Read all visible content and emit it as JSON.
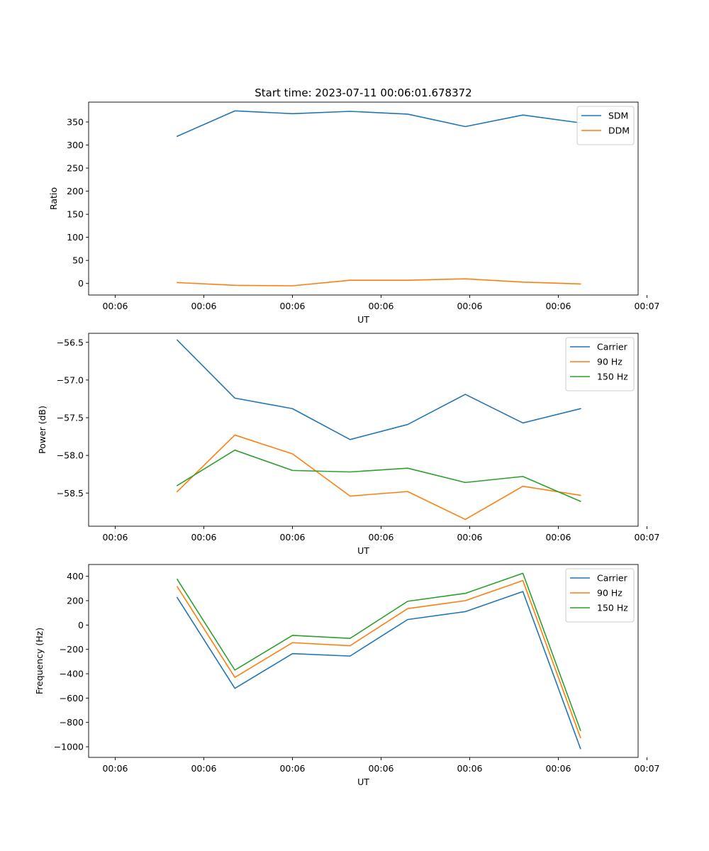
{
  "colors": {
    "blue": "#1f77b4",
    "orange": "#ff7f0e",
    "green": "#2ca02c"
  },
  "chart_data": [
    {
      "type": "line",
      "title": "Start time: 2023-07-11 00:06:01.678372",
      "xlabel": "UT",
      "ylabel": "Ratio",
      "x": [
        0.7,
        1.35,
        2.0,
        2.65,
        3.3,
        3.95,
        4.6,
        5.25
      ],
      "xlim": [
        -0.3,
        5.9
      ],
      "xticks": [
        0,
        1,
        2,
        3,
        4,
        5,
        6
      ],
      "xtick_labels": [
        "00:06",
        "00:06",
        "00:06",
        "00:06",
        "00:06",
        "00:06",
        "00:07"
      ],
      "ylim": [
        -25,
        393
      ],
      "yticks": [
        0,
        50,
        100,
        150,
        200,
        250,
        300,
        350
      ],
      "ytick_labels": [
        "0",
        "50",
        "100",
        "150",
        "200",
        "250",
        "300",
        "350"
      ],
      "legend": "top-right",
      "series": [
        {
          "name": "SDM",
          "color": "blue",
          "values": [
            319,
            374,
            368,
            373,
            367,
            340,
            365,
            348
          ]
        },
        {
          "name": "DDM",
          "color": "orange",
          "values": [
            2,
            -4,
            -5,
            7,
            7,
            10,
            3,
            -1
          ]
        }
      ]
    },
    {
      "type": "line",
      "title": "",
      "xlabel": "UT",
      "ylabel": "Power (dB)",
      "x": [
        0.7,
        1.35,
        2.0,
        2.65,
        3.3,
        3.95,
        4.6,
        5.25
      ],
      "xlim": [
        -0.3,
        5.9
      ],
      "xticks": [
        0,
        1,
        2,
        3,
        4,
        5,
        6
      ],
      "xtick_labels": [
        "00:06",
        "00:06",
        "00:06",
        "00:06",
        "00:06",
        "00:06",
        "00:07"
      ],
      "ylim": [
        -58.94,
        -56.38
      ],
      "yticks": [
        -58.5,
        -58.0,
        -57.5,
        -57.0,
        -56.5
      ],
      "ytick_labels": [
        "−58.5",
        "−58.0",
        "−57.5",
        "−57.0",
        "−56.5"
      ],
      "legend": "top-right",
      "series": [
        {
          "name": "Carrier",
          "color": "blue",
          "values": [
            -56.47,
            -57.24,
            -57.38,
            -57.79,
            -57.59,
            -57.19,
            -57.57,
            -57.38
          ]
        },
        {
          "name": "90 Hz",
          "color": "orange",
          "values": [
            -58.48,
            -57.73,
            -57.98,
            -58.54,
            -58.48,
            -58.85,
            -58.41,
            -58.53
          ]
        },
        {
          "name": "150 Hz",
          "color": "green",
          "values": [
            -58.4,
            -57.93,
            -58.2,
            -58.22,
            -58.17,
            -58.36,
            -58.28,
            -58.61
          ]
        }
      ]
    },
    {
      "type": "line",
      "title": "",
      "xlabel": "UT",
      "ylabel": "Frequency (Hz)",
      "x": [
        0.7,
        1.35,
        2.0,
        2.65,
        3.3,
        3.95,
        4.6,
        5.25
      ],
      "xlim": [
        -0.3,
        5.9
      ],
      "xticks": [
        0,
        1,
        2,
        3,
        4,
        5,
        6
      ],
      "xtick_labels": [
        "00:06",
        "00:06",
        "00:06",
        "00:06",
        "00:06",
        "00:06",
        "00:07"
      ],
      "ylim": [
        -1087,
        497
      ],
      "yticks": [
        -1000,
        -800,
        -600,
        -400,
        -200,
        0,
        200,
        400
      ],
      "ytick_labels": [
        "−1000",
        "−800",
        "−600",
        "−400",
        "−200",
        "0",
        "200",
        "400"
      ],
      "legend": "top-right",
      "series": [
        {
          "name": "Carrier",
          "color": "blue",
          "values": [
            225,
            -520,
            -235,
            -255,
            45,
            110,
            275,
            -1015
          ]
        },
        {
          "name": "90 Hz",
          "color": "orange",
          "values": [
            315,
            -430,
            -145,
            -170,
            135,
            200,
            365,
            -925
          ]
        },
        {
          "name": "150 Hz",
          "color": "green",
          "values": [
            375,
            -370,
            -85,
            -110,
            195,
            260,
            425,
            -865
          ]
        }
      ]
    }
  ]
}
